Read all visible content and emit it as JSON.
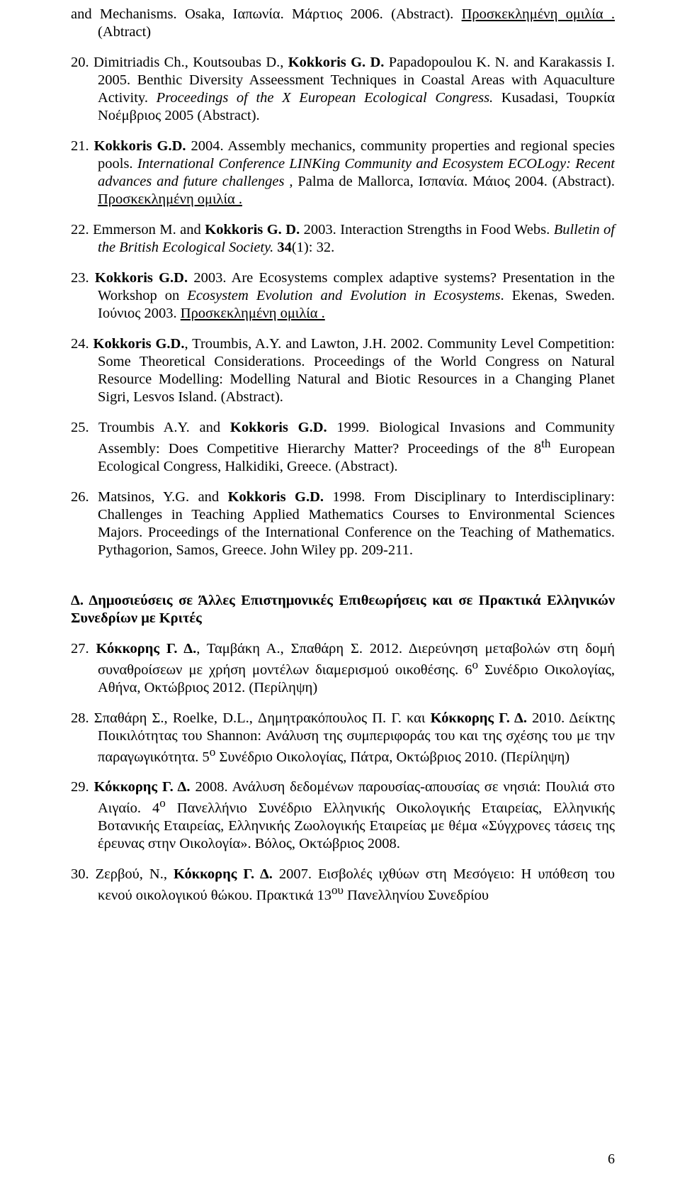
{
  "entries": {
    "e19tail": "and Mechanisms. Osaka, Ιαπωνία. Μάρτιος 2006. (Abstract). <u>Προσκεκλημένη ομιλία .</u> (Abtract)",
    "e20": "20. Dimitriadis Ch., Koutsoubas D., <b>Kokkoris G. D.</b> Papadopoulou K. N. and Karakassis I. 2005. Benthic Diversity Asseessment Techniques in Coastal Areas with Aquaculture Activity. <i>Proceedings of the X European Ecological Congress.</i> Kusadasi, Τουρκία Νοέμβριος 2005 (Abstract).",
    "e21": "21. <b>Kokkoris G.D.</b> 2004. Assembly mechanics, community properties and regional species pools. <i>International Conference LINKing Community and Ecosystem ECOLogy: Recent advances and future challenges ,</i> Palma de Mallorca, Ισπανία. Μάιος 2004. (Abstract). <u>Προσκεκλημένη  ομιλία .</u>",
    "e22": "22. Emmerson M. and <b>Kokkoris G. D.</b> 2003. Interaction Strengths in Food Webs. <i>Bulletin of the British Ecological Society.</i> <b>34</b>(1): 32.",
    "e23": "23. <b>Kokkoris G.D.</b> 2003. Are Ecosystems complex adaptive systems? Presentation in the Workshop on <i>Ecosystem Evolution and Evolution in Ecosystems</i>. Ekenas, Sweden. Ιούνιος 2003. <u>Προσκεκλημένη  ομιλία .</u>",
    "e24": "24. <b>Kokkoris G.D.</b>, Troumbis, A.Y. and Lawton, J.H. 2002. Community Level Competition: Some Theoretical Considerations. Proceedings of the World Congress on Natural Resource Modelling: Modelling Natural and Biotic Resources in a Changing Planet  Sigri, Lesvos Island. (Abstract).",
    "e25": "25. Troumbis A.Y. and <b>Kokkoris G.D.</b> 1999. Biological Invasions and Community Assembly: Does Competitive Hierarchy Matter? Proceedings of the 8<sup>th</sup> European Ecological Congress, Halkidiki, Greece. (Abstract).",
    "e26": "26. Matsinos, Y.G. and <b>Kokkoris G.D.</b> 1998. From Disciplinary to Interdisciplinary: Challenges in Teaching Applied Mathematics Courses to Environmental Sciences Majors. Proceedings of the International Conference on the Teaching of Mathematics. Pythagorion, Samos, Greece. John Wiley pp. 209-211.",
    "sectionD": "Δ. Δημοσιεύσεις σε Άλλες Επιστημονικές Επιθεωρήσεις και σε Πρακτικά Ελληνικών Συνεδρίων με Κριτές",
    "e27": "27. <b>Κόκκορης Γ. Δ.</b>, Ταμβάκη Α., Σπαθάρη Σ. 2012. Διερεύνηση μεταβολών στη δομή συναθροίσεων με χρήση μοντέλων διαμερισμού οικοθέσης. 6<sup>ο</sup> Συνέδριο Οικολογίας, Αθήνα, Οκτώβριος 2012. (Περίληψη)",
    "e28": "28. Σπαθάρη Σ., Roelke, D.L., Δημητρακόπουλος Π. Γ. και <b>Κόκκορης Γ. Δ.</b> 2010. Δείκτης Ποικιλότητας του Shannon: Ανάλυση της συμπεριφοράς του και της σχέσης του με την παραγωγικότητα. 5<sup>ο</sup> Συνέδριο Οικολογίας, Πάτρα, Οκτώβριος 2010. (Περίληψη)",
    "e29": "29. <b>Κόκκορης Γ. Δ.</b> 2008. Ανάλυση δεδομένων παρουσίας-απουσίας σε νησιά: Πουλιά στο Αιγαίο. 4<sup>ο</sup> Πανελλήνιο Συνέδριο Ελληνικής Οικολογικής Εταιρείας, Ελληνικής Βοτανικής Εταιρείας, Ελληνικής Ζωολογικής Εταιρείας με θέμα «Σύγχρονες τάσεις της έρευνας στην Οικολογία». Βόλος, Οκτώβριος 2008.",
    "e30": "30. Ζερβού, Ν., <b>Κόκκορης Γ. Δ.</b> 2007. Εισβολές ιχθύων στη Μεσόγειο: Η υπόθεση του κενού οικολογικού θώκου. Πρακτικά 13<sup>ου</sup> Πανελληνίου Συνεδρίου"
  },
  "pageNumber": "6"
}
